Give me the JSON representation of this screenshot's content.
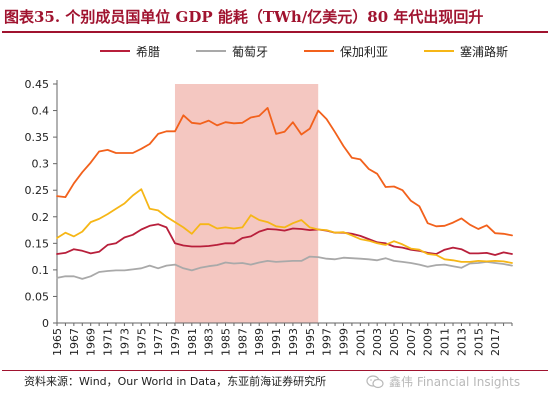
{
  "header": {
    "title": "图表35. 个别成员国单位 GDP 能耗（TWh/亿美元）80 年代出现回升"
  },
  "footer": {
    "source": "资料来源：Wind，Our World in Data，东亚前海证券研究所",
    "watermark_text": "鑫伟 Financial Insights",
    "watermark_icon": "wechat-icon"
  },
  "chart_data": {
    "type": "line",
    "title": "",
    "xlabel": "",
    "ylabel": "",
    "xlim": [
      1965,
      2019
    ],
    "ylim": [
      0,
      0.45
    ],
    "yticks": [
      0,
      0.05,
      0.1,
      0.15,
      0.2,
      0.25,
      0.3,
      0.35,
      0.4,
      0.45
    ],
    "ytick_labels": [
      "0",
      "0.05",
      "0.1",
      "0.15",
      "0.2",
      "0.25",
      "0.3",
      "0.35",
      "0.4",
      "0.45"
    ],
    "xtick_labels": [
      "1965",
      "1967",
      "1969",
      "1971",
      "1973",
      "1975",
      "1977",
      "1979",
      "1981",
      "1983",
      "1985",
      "1987",
      "1989",
      "1991",
      "1993",
      "1995",
      "1997",
      "1999",
      "2001",
      "2003",
      "2005",
      "2007",
      "2009",
      "2011",
      "2013",
      "2015",
      "2017"
    ],
    "grid": false,
    "legend_position": "top",
    "highlight": {
      "x_start": 1979,
      "x_end": 1996,
      "color": "#f4c7c1"
    },
    "x": [
      1965,
      1966,
      1967,
      1968,
      1969,
      1970,
      1971,
      1972,
      1973,
      1974,
      1975,
      1976,
      1977,
      1978,
      1979,
      1980,
      1981,
      1982,
      1983,
      1984,
      1985,
      1986,
      1987,
      1988,
      1989,
      1990,
      1991,
      1992,
      1993,
      1994,
      1995,
      1996,
      1997,
      1998,
      1999,
      2000,
      2001,
      2002,
      2003,
      2004,
      2005,
      2006,
      2007,
      2008,
      2009,
      2010,
      2011,
      2012,
      2013,
      2014,
      2015,
      2016,
      2017,
      2018,
      2019
    ],
    "series": [
      {
        "name": "希腊",
        "color": "#b81f3b",
        "values": [
          0.13,
          0.132,
          0.139,
          0.136,
          0.131,
          0.134,
          0.147,
          0.15,
          0.161,
          0.166,
          0.176,
          0.183,
          0.186,
          0.18,
          0.15,
          0.146,
          0.144,
          0.144,
          0.145,
          0.147,
          0.15,
          0.15,
          0.16,
          0.163,
          0.172,
          0.177,
          0.176,
          0.174,
          0.178,
          0.177,
          0.175,
          0.176,
          0.174,
          0.17,
          0.17,
          0.168,
          0.164,
          0.158,
          0.152,
          0.15,
          0.144,
          0.142,
          0.138,
          0.136,
          0.132,
          0.13,
          0.138,
          0.142,
          0.139,
          0.131,
          0.131,
          0.132,
          0.128,
          0.133,
          0.13
        ]
      },
      {
        "name": "葡萄牙",
        "color": "#a9a9a9",
        "values": [
          0.085,
          0.088,
          0.088,
          0.083,
          0.088,
          0.096,
          0.098,
          0.099,
          0.099,
          0.101,
          0.103,
          0.108,
          0.103,
          0.108,
          0.11,
          0.103,
          0.099,
          0.104,
          0.107,
          0.109,
          0.114,
          0.112,
          0.113,
          0.11,
          0.114,
          0.117,
          0.115,
          0.116,
          0.117,
          0.117,
          0.125,
          0.124,
          0.121,
          0.12,
          0.123,
          0.122,
          0.121,
          0.12,
          0.118,
          0.122,
          0.117,
          0.115,
          0.113,
          0.11,
          0.106,
          0.109,
          0.11,
          0.107,
          0.104,
          0.112,
          0.113,
          0.115,
          0.113,
          0.111,
          0.108
        ]
      },
      {
        "name": "保加利亚",
        "color": "#f2611c",
        "values": [
          0.239,
          0.237,
          0.263,
          0.284,
          0.302,
          0.323,
          0.326,
          0.32,
          0.32,
          0.32,
          0.328,
          0.337,
          0.356,
          0.361,
          0.361,
          0.391,
          0.377,
          0.375,
          0.381,
          0.372,
          0.378,
          0.376,
          0.377,
          0.387,
          0.39,
          0.405,
          0.356,
          0.36,
          0.378,
          0.355,
          0.366,
          0.4,
          0.384,
          0.359,
          0.333,
          0.311,
          0.308,
          0.29,
          0.281,
          0.256,
          0.257,
          0.25,
          0.23,
          0.22,
          0.188,
          0.182,
          0.183,
          0.189,
          0.197,
          0.185,
          0.177,
          0.184,
          0.169,
          0.168,
          0.165
        ]
      },
      {
        "name": "塞浦路斯",
        "color": "#f6b616",
        "values": [
          0.16,
          0.17,
          0.163,
          0.172,
          0.19,
          0.196,
          0.205,
          0.215,
          0.225,
          0.24,
          0.252,
          0.215,
          0.212,
          0.2,
          0.19,
          0.18,
          0.168,
          0.186,
          0.186,
          0.178,
          0.18,
          0.178,
          0.18,
          0.203,
          0.194,
          0.19,
          0.182,
          0.18,
          0.188,
          0.194,
          0.18,
          0.176,
          0.175,
          0.17,
          0.171,
          0.165,
          0.158,
          0.155,
          0.15,
          0.147,
          0.154,
          0.148,
          0.14,
          0.138,
          0.13,
          0.128,
          0.12,
          0.118,
          0.115,
          0.115,
          0.117,
          0.116,
          0.117,
          0.116,
          0.113
        ]
      }
    ]
  }
}
